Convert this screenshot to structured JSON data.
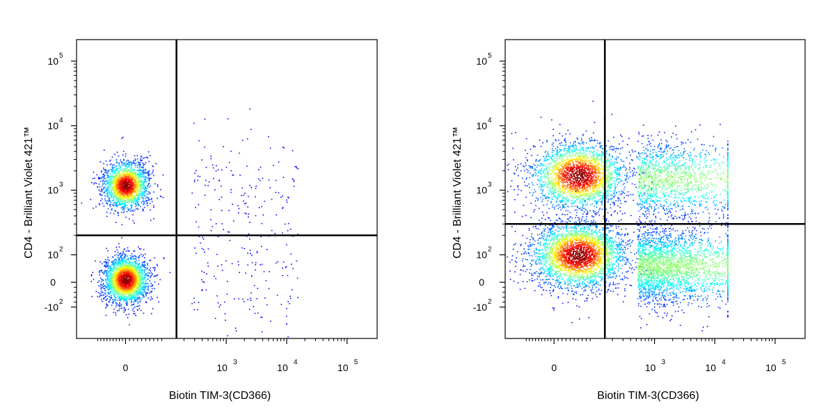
{
  "chart_data": [
    {
      "type": "scatter",
      "style": "density-dot-plot",
      "xlabel": "Biotin TIM-3(CD366)",
      "ylabel": "CD4 - Brilliant Violet 421™",
      "x_scale": "biexponential",
      "y_scale": "biexponential",
      "xlim": [
        -1000,
        200000
      ],
      "ylim": [
        -1000,
        250000
      ],
      "x_ticks": [
        {
          "base": "0",
          "exp": "",
          "value": 0
        },
        {
          "base": "10",
          "exp": "3",
          "value": 1000
        },
        {
          "base": "10",
          "exp": "4",
          "value": 10000
        },
        {
          "base": "10",
          "exp": "5",
          "value": 100000
        }
      ],
      "y_ticks": [
        {
          "base": "-10",
          "exp": "2",
          "value": -100
        },
        {
          "base": "0",
          "exp": "",
          "value": 0
        },
        {
          "base": "10",
          "exp": "2",
          "value": 100
        },
        {
          "base": "10",
          "exp": "3",
          "value": 1000
        },
        {
          "base": "10",
          "exp": "4",
          "value": 10000
        },
        {
          "base": "10",
          "exp": "5",
          "value": 100000
        }
      ],
      "quadrant_gate": {
        "x": 150,
        "y": 200
      },
      "populations": [
        {
          "x_center": 0,
          "y_center": 1200,
          "spread": "narrow",
          "count": 2000
        },
        {
          "x_center": 0,
          "y_center": 10,
          "spread": "narrow",
          "count": 2500
        },
        {
          "x_center": 2000,
          "y_center": 800,
          "spread": "sparse",
          "count": 160
        },
        {
          "x_center": 2000,
          "y_center": 10,
          "spread": "sparse",
          "count": 120
        }
      ]
    },
    {
      "type": "scatter",
      "style": "density-dot-plot",
      "xlabel": "Biotin TIM-3(CD366)",
      "ylabel": "CD4 - Brilliant Violet 421™",
      "x_scale": "biexponential",
      "y_scale": "biexponential",
      "xlim": [
        -1000,
        200000
      ],
      "ylim": [
        -1000,
        250000
      ],
      "x_ticks": [
        {
          "base": "0",
          "exp": "",
          "value": 0
        },
        {
          "base": "10",
          "exp": "3",
          "value": 1000
        },
        {
          "base": "10",
          "exp": "4",
          "value": 10000
        },
        {
          "base": "10",
          "exp": "5",
          "value": 100000
        }
      ],
      "y_ticks": [
        {
          "base": "-10",
          "exp": "2",
          "value": -100
        },
        {
          "base": "0",
          "exp": "",
          "value": 0
        },
        {
          "base": "10",
          "exp": "2",
          "value": 100
        },
        {
          "base": "10",
          "exp": "3",
          "value": 1000
        },
        {
          "base": "10",
          "exp": "4",
          "value": 10000
        },
        {
          "base": "10",
          "exp": "5",
          "value": 100000
        }
      ],
      "quadrant_gate": {
        "x": 150,
        "y": 300
      },
      "populations": [
        {
          "x_center": 60,
          "y_center": 1700,
          "spread": "wide",
          "count": 2600
        },
        {
          "x_center": 1500,
          "y_center": 1500,
          "spread": "tail",
          "count": 1400
        },
        {
          "x_center": 60,
          "y_center": 100,
          "spread": "wide",
          "count": 3200
        },
        {
          "x_center": 1500,
          "y_center": 60,
          "spread": "tail",
          "count": 2600
        }
      ]
    }
  ]
}
